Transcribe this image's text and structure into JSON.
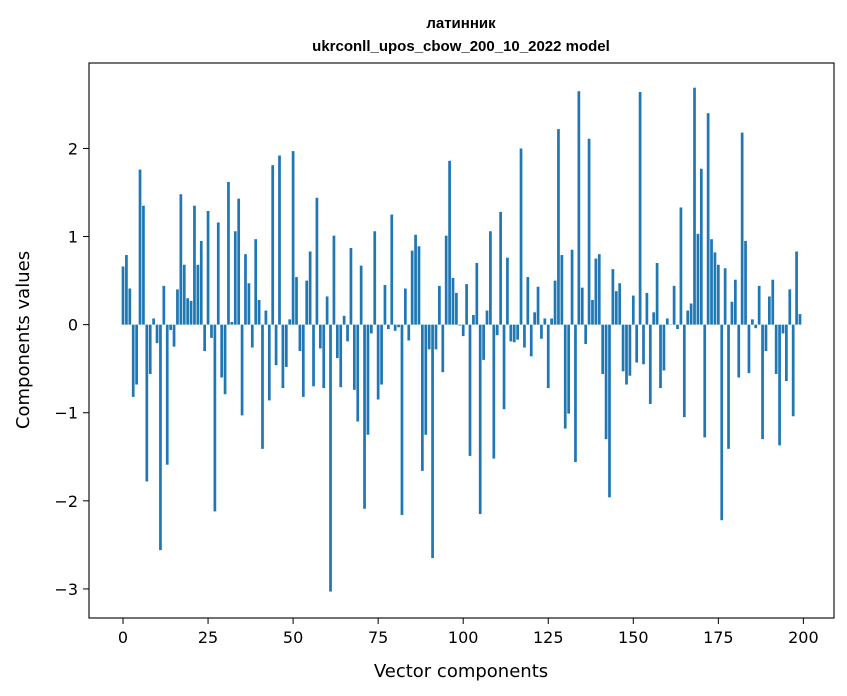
{
  "chart_data": {
    "type": "bar",
    "title": "латинник",
    "subtitle": "ukrconll_upos_cbow_200_10_2022 model",
    "xlabel": "Vector components",
    "ylabel": "Components values",
    "xlim": [
      -10,
      209
    ],
    "ylim": [
      -3.33,
      2.97
    ],
    "xticks": [
      0,
      25,
      50,
      75,
      100,
      125,
      150,
      175,
      200
    ],
    "yticks": [
      -3,
      -2,
      -1,
      0,
      1,
      2
    ],
    "grid": false,
    "bar_color": "#1f77b4",
    "x": [
      0,
      1,
      2,
      3,
      4,
      5,
      6,
      7,
      8,
      9,
      10,
      11,
      12,
      13,
      14,
      15,
      16,
      17,
      18,
      19,
      20,
      21,
      22,
      23,
      24,
      25,
      26,
      27,
      28,
      29,
      30,
      31,
      32,
      33,
      34,
      35,
      36,
      37,
      38,
      39,
      40,
      41,
      42,
      43,
      44,
      45,
      46,
      47,
      48,
      49,
      50,
      51,
      52,
      53,
      54,
      55,
      56,
      57,
      58,
      59,
      60,
      61,
      62,
      63,
      64,
      65,
      66,
      67,
      68,
      69,
      70,
      71,
      72,
      73,
      74,
      75,
      76,
      77,
      78,
      79,
      80,
      81,
      82,
      83,
      84,
      85,
      86,
      87,
      88,
      89,
      90,
      91,
      92,
      93,
      94,
      95,
      96,
      97,
      98,
      99,
      100,
      101,
      102,
      103,
      104,
      105,
      106,
      107,
      108,
      109,
      110,
      111,
      112,
      113,
      114,
      115,
      116,
      117,
      118,
      119,
      120,
      121,
      122,
      123,
      124,
      125,
      126,
      127,
      128,
      129,
      130,
      131,
      132,
      133,
      134,
      135,
      136,
      137,
      138,
      139,
      140,
      141,
      142,
      143,
      144,
      145,
      146,
      147,
      148,
      149,
      150,
      151,
      152,
      153,
      154,
      155,
      156,
      157,
      158,
      159,
      160,
      161,
      162,
      163,
      164,
      165,
      166,
      167,
      168,
      169,
      170,
      171,
      172,
      173,
      174,
      175,
      176,
      177,
      178,
      179,
      180,
      181,
      182,
      183,
      184,
      185,
      186,
      187,
      188,
      189,
      190,
      191,
      192,
      193,
      194,
      195,
      196,
      197,
      198,
      199
    ],
    "values": [
      0.66,
      0.79,
      0.41,
      -0.82,
      -0.68,
      1.76,
      1.35,
      -1.78,
      -0.56,
      0.07,
      -0.21,
      -2.56,
      0.44,
      -1.59,
      -0.06,
      -0.25,
      0.4,
      1.48,
      0.68,
      0.3,
      0.27,
      1.35,
      0.68,
      0.95,
      -0.3,
      1.29,
      -0.15,
      -2.12,
      1.16,
      -0.6,
      -0.79,
      1.62,
      0.03,
      1.06,
      1.43,
      -1.03,
      0.8,
      0.47,
      -0.26,
      0.97,
      0.28,
      -1.41,
      0.16,
      -0.86,
      1.81,
      -0.46,
      1.92,
      -0.72,
      -0.48,
      0.06,
      1.97,
      0.54,
      -0.3,
      -0.82,
      0.5,
      0.83,
      -0.7,
      1.44,
      -0.27,
      -0.72,
      0.32,
      -3.03,
      1.01,
      -0.38,
      -0.71,
      0.1,
      -0.19,
      0.87,
      -0.74,
      -1.1,
      0.67,
      -2.09,
      -1.25,
      -0.1,
      1.06,
      -0.85,
      -0.68,
      0.45,
      -0.05,
      1.25,
      -0.07,
      -0.03,
      -2.16,
      0.41,
      -0.18,
      0.84,
      1.02,
      0.89,
      -1.66,
      -1.25,
      -0.28,
      -2.65,
      -0.28,
      0.44,
      -0.54,
      1.01,
      1.86,
      0.53,
      0.36,
      -0.01,
      -0.13,
      0.46,
      -1.49,
      0.11,
      0.7,
      -2.15,
      -0.4,
      0.16,
      1.06,
      -1.52,
      -0.12,
      1.28,
      -0.96,
      0.76,
      -0.19,
      -0.2,
      -0.17,
      2.0,
      -0.26,
      0.54,
      -0.36,
      0.14,
      0.43,
      -0.16,
      0.07,
      -0.72,
      0.07,
      0.5,
      2.22,
      0.79,
      -1.18,
      -1.01,
      0.85,
      -1.56,
      2.65,
      0.42,
      -0.22,
      2.11,
      0.28,
      0.75,
      0.8,
      -0.56,
      -1.3,
      -1.96,
      0.63,
      0.38,
      0.47,
      -0.53,
      -0.68,
      -0.58,
      0.33,
      -0.43,
      2.64,
      -0.45,
      0.36,
      -0.9,
      0.14,
      0.7,
      -0.72,
      -0.52,
      0.07,
      0.0,
      0.44,
      -0.05,
      1.33,
      -1.05,
      0.16,
      0.24,
      2.69,
      1.03,
      1.77,
      -1.28,
      2.4,
      0.97,
      0.82,
      0.68,
      -2.22,
      0.64,
      -1.41,
      0.26,
      0.51,
      -0.6,
      2.18,
      0.95,
      -0.55,
      0.06,
      -0.04,
      0.44,
      -1.3,
      -0.3,
      0.32,
      0.51,
      -0.56,
      -1.37,
      -0.1,
      -0.64,
      0.4,
      -1.04,
      0.83,
      0.12
    ]
  }
}
